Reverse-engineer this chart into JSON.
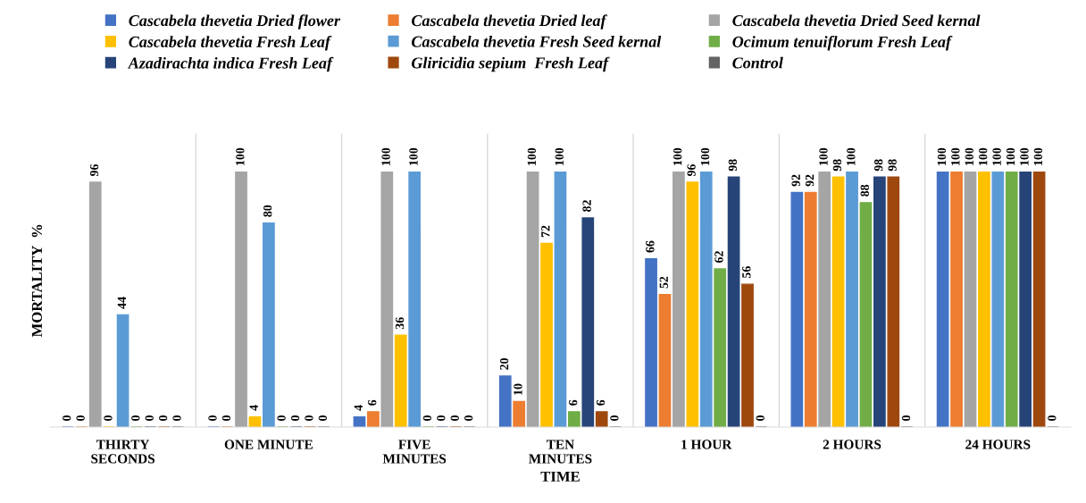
{
  "chart_data": {
    "type": "bar",
    "xlabel": "TIME",
    "ylabel": "MORTALITY  %",
    "categories": [
      "THIRTY\nSECONDS",
      "ONE MINUTE",
      "FIVE\nMINUTES",
      "TEN\nMINUTES",
      "1 HOUR",
      "2 HOURS",
      "24 HOURS"
    ],
    "series": [
      {
        "name": "Cascabela thevetia Dried flower",
        "color": "#4472c4",
        "values": [
          0,
          0,
          4,
          20,
          66,
          92,
          100
        ]
      },
      {
        "name": "Cascabela thevetia Dried leaf",
        "color": "#ed7d31",
        "values": [
          0,
          0,
          6,
          10,
          52,
          92,
          100
        ]
      },
      {
        "name": "Cascabela thevetia Dried Seed kernal",
        "color": "#a5a5a5",
        "values": [
          96,
          100,
          100,
          100,
          100,
          100,
          100
        ]
      },
      {
        "name": "Cascabela thevetia Fresh Leaf",
        "color": "#ffc000",
        "values": [
          0,
          4,
          36,
          72,
          96,
          98,
          100
        ]
      },
      {
        "name": "Cascabela thevetia Fresh Seed kernal",
        "color": "#5b9bd5",
        "values": [
          44,
          80,
          100,
          100,
          100,
          100,
          100
        ]
      },
      {
        "name": "Ocimum tenuiflorum Fresh Leaf",
        "color": "#70ad47",
        "values": [
          0,
          0,
          0,
          6,
          62,
          88,
          100
        ]
      },
      {
        "name": "Azadirachta indica Fresh Leaf",
        "color": "#264478",
        "values": [
          0,
          0,
          0,
          82,
          98,
          98,
          100
        ]
      },
      {
        "name": "Gliricidia sepium  Fresh Leaf",
        "color": "#9e480e",
        "values": [
          0,
          0,
          0,
          6,
          56,
          98,
          100
        ]
      },
      {
        "name": "Control",
        "color": "#636363",
        "values": [
          0,
          0,
          0,
          0,
          0,
          0,
          0
        ]
      }
    ],
    "ylim": [
      0,
      115
    ],
    "tick_labels": "x",
    "data_labels": true,
    "legend": "top"
  }
}
